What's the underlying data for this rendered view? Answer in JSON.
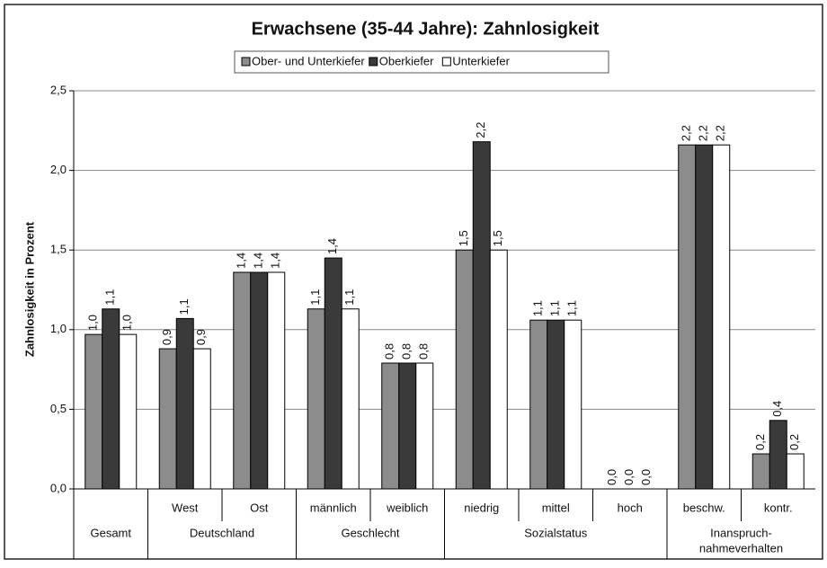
{
  "chart_data": {
    "type": "bar",
    "title": "Erwachsene (35-44 Jahre): Zahnlosigkeit",
    "y_label": "Zahnlosigkeit in Prozent",
    "categories": [
      null,
      "West",
      "Ost",
      "männlich",
      "weiblich",
      "niedrig",
      "mittel",
      "hoch",
      "beschw.",
      "kontr."
    ],
    "groups": [
      {
        "label": "Gesamt",
        "count": 1
      },
      {
        "label": "Deutschland",
        "count": 2
      },
      {
        "label": "Geschlecht",
        "count": 2
      },
      {
        "label": "Sozialstatus",
        "count": 3
      },
      {
        "label": "Inanspruch-",
        "label2": "nahmeverhalten",
        "count": 2
      }
    ],
    "series": [
      {
        "name": "Ober- und Unterkiefer",
        "color": "#8c8c8c",
        "values": [
          0.97,
          0.88,
          1.36,
          1.13,
          0.79,
          1.5,
          1.06,
          0,
          2.16,
          0.22
        ],
        "value_labels": [
          "1,0",
          "0,9",
          "1,4",
          "1,1",
          "0,8",
          "1,5",
          "1,1",
          "0,0",
          "2,2",
          "0,2"
        ]
      },
      {
        "name": "Oberkiefer",
        "color": "#3a3a3a",
        "values": [
          1.13,
          1.07,
          1.36,
          1.45,
          0.79,
          2.18,
          1.06,
          0,
          2.16,
          0.43
        ],
        "value_labels": [
          "1,1",
          "1,1",
          "1,4",
          "1,4",
          "0,8",
          "2,2",
          "1,1",
          "0,0",
          "2,2",
          "0,4"
        ]
      },
      {
        "name": "Unterkiefer",
        "color": "#ffffff",
        "values": [
          0.97,
          0.88,
          1.36,
          1.13,
          0.79,
          1.5,
          1.06,
          0,
          2.16,
          0.22
        ],
        "value_labels": [
          "1,0",
          "0,9",
          "1,4",
          "1,1",
          "0,8",
          "1,5",
          "1,1",
          "0,0",
          "2,2",
          "0,2"
        ]
      }
    ],
    "ylim": [
      0,
      2.5
    ],
    "yticks": [
      {
        "value": 0,
        "label": "0,0"
      },
      {
        "value": 0.5,
        "label": "0,5"
      },
      {
        "value": 1,
        "label": "1,0"
      },
      {
        "value": 1.5,
        "label": "1,5"
      },
      {
        "value": 2,
        "label": "2,0"
      },
      {
        "value": 2.5,
        "label": "2,5"
      }
    ],
    "grid": true
  }
}
